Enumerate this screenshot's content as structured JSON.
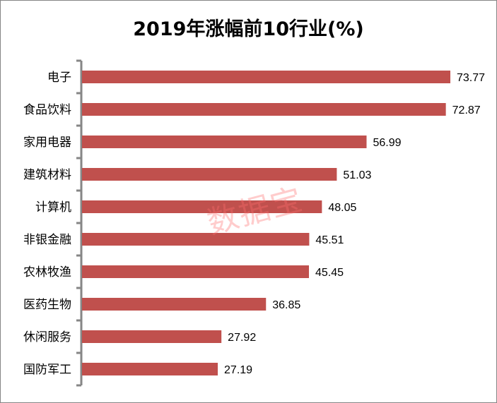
{
  "chart_data": {
    "type": "bar",
    "orientation": "horizontal",
    "title": "2019年涨幅前10行业(%)",
    "categories": [
      "电子",
      "食品饮料",
      "家用电器",
      "建筑材料",
      "计算机",
      "非银金融",
      "农林牧渔",
      "医药生物",
      "休闲服务",
      "国防军工"
    ],
    "values": [
      73.77,
      72.87,
      56.99,
      51.03,
      48.05,
      45.51,
      45.45,
      36.85,
      27.92,
      27.19
    ],
    "value_labels": [
      "73.77",
      "72.87",
      "56.99",
      "51.03",
      "48.05",
      "45.51",
      "45.45",
      "36.85",
      "27.92",
      "27.19"
    ],
    "xlabel": "",
    "ylabel": "",
    "xlim": [
      0,
      80
    ],
    "grid": false,
    "bar_color": "#C0504D"
  },
  "watermark": "数据宝"
}
